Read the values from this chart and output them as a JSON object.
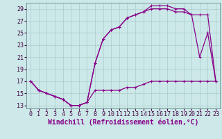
{
  "xlabel": "Windchill (Refroidissement éolien,°C)",
  "xlim_min": -0.5,
  "xlim_max": 23.5,
  "ylim_min": 12.5,
  "ylim_max": 30.0,
  "xticks": [
    0,
    1,
    2,
    3,
    4,
    5,
    6,
    7,
    8,
    9,
    10,
    11,
    12,
    13,
    14,
    15,
    16,
    17,
    18,
    19,
    20,
    21,
    22,
    23
  ],
  "yticks": [
    13,
    15,
    17,
    19,
    21,
    23,
    25,
    27,
    29
  ],
  "background_color": "#cce8e8",
  "grid_color": "#aacccc",
  "line_color": "#880088",
  "line1_x": [
    0,
    1,
    2,
    3,
    4,
    5,
    6,
    7,
    8,
    9,
    10,
    11,
    12,
    13,
    14,
    15,
    16,
    17,
    18,
    19,
    20,
    21,
    22,
    23
  ],
  "line1_y": [
    17,
    15.5,
    15,
    14.5,
    14,
    13,
    13,
    13.5,
    15.5,
    15.5,
    15.5,
    15.5,
    16,
    16,
    16.5,
    17,
    17,
    17,
    17,
    17,
    17,
    17,
    17,
    17
  ],
  "line2_x": [
    0,
    1,
    2,
    3,
    4,
    5,
    6,
    7,
    8,
    9,
    10,
    11,
    12,
    13,
    14,
    15,
    16,
    17,
    18,
    19,
    20,
    21,
    22,
    23
  ],
  "line2_y": [
    17,
    15.5,
    15,
    14.5,
    14,
    13,
    13,
    13.5,
    20,
    24,
    25.5,
    26,
    27.5,
    28,
    28.5,
    29,
    29,
    29,
    28.5,
    28.5,
    28,
    21,
    25,
    17
  ],
  "line3_x": [
    0,
    1,
    2,
    3,
    4,
    5,
    6,
    7,
    8,
    9,
    10,
    11,
    12,
    13,
    14,
    15,
    16,
    17,
    18,
    19,
    20,
    21,
    22,
    23
  ],
  "line3_y": [
    17,
    15.5,
    15,
    14.5,
    14,
    13,
    13,
    13.5,
    20,
    24,
    25.5,
    26,
    27.5,
    28,
    28.5,
    29.5,
    29.5,
    29.5,
    29,
    29,
    28,
    28,
    28,
    17
  ],
  "marker": "+",
  "markersize": 3.5,
  "markeredgewidth": 0.8,
  "linewidth": 0.9,
  "xlabel_fontsize": 7,
  "tick_fontsize": 6,
  "tick_color": "#440044",
  "label_color": "#880088"
}
